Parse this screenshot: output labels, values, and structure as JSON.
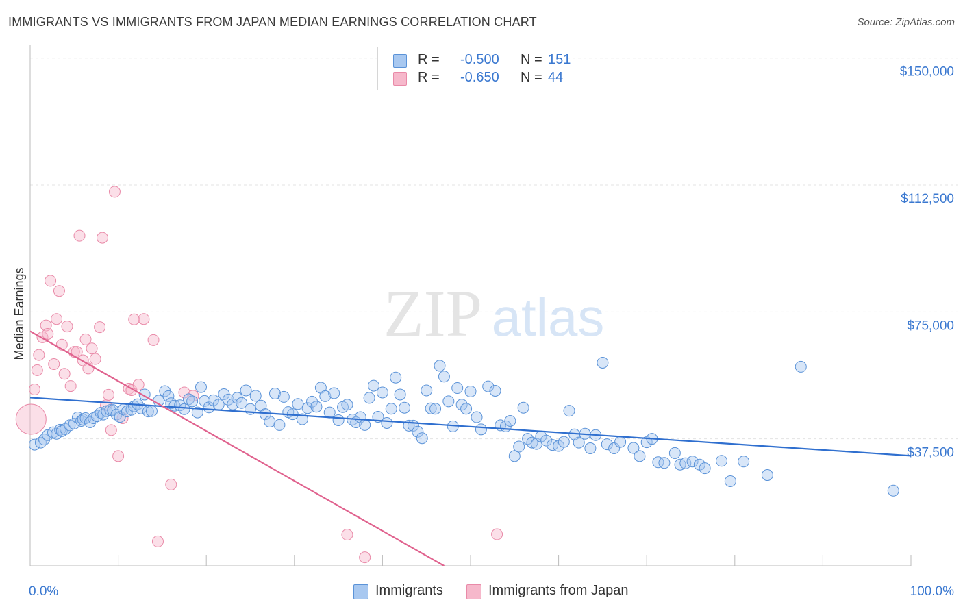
{
  "header": {
    "title": "IMMIGRANTS VS IMMIGRANTS FROM JAPAN MEDIAN EARNINGS CORRELATION CHART",
    "source": "Source: ZipAtlas.com"
  },
  "legend": {
    "rows": [
      {
        "r_label": "R =",
        "r_value": "-0.500",
        "n_label": "N =",
        "n_value": "151"
      },
      {
        "r_label": "R =",
        "r_value": "-0.650",
        "n_label": "N =",
        "n_value": "44"
      }
    ]
  },
  "bottom_legend": {
    "items": [
      {
        "label": "Immigrants"
      },
      {
        "label": "Immigrants from Japan"
      }
    ]
  },
  "watermark": {
    "zip": "ZIP",
    "atlas": "atlas"
  },
  "colors": {
    "blue_fill": "#a8c8f0",
    "blue_stroke": "#5b93d8",
    "blue_line": "#2f6fcf",
    "pink_fill": "#f6b8cb",
    "pink_stroke": "#e98aa8",
    "pink_line": "#e0628e",
    "tick_label": "#3a78d0",
    "grid": "#e3e3e3"
  },
  "chart_data": {
    "type": "scatter",
    "title": "IMMIGRANTS VS IMMIGRANTS FROM JAPAN MEDIAN EARNINGS CORRELATION CHART",
    "ylabel": "Median Earnings",
    "xlabel": "",
    "x_tick_labels": [
      "0.0%",
      "100.0%"
    ],
    "y_tick_labels": [
      "$150,000",
      "$112,500",
      "$75,000",
      "$37,500"
    ],
    "y_ticks": [
      150000,
      112500,
      75000,
      37500
    ],
    "xlim": [
      0,
      100
    ],
    "ylim": [
      0,
      155000
    ],
    "grid": true,
    "legend_position": "top-center",
    "series": [
      {
        "name": "Immigrants",
        "color": "#5b93d8",
        "trend": {
          "x": [
            0,
            100
          ],
          "y": [
            49700,
            32500
          ]
        },
        "points": [
          [
            0.5,
            35800
          ],
          [
            1.2,
            36400
          ],
          [
            1.6,
            37300
          ],
          [
            2.0,
            38600
          ],
          [
            2.6,
            39400
          ],
          [
            3.0,
            39000
          ],
          [
            3.4,
            40200
          ],
          [
            3.6,
            39800
          ],
          [
            4.0,
            40400
          ],
          [
            4.5,
            41500
          ],
          [
            5.0,
            42000
          ],
          [
            5.4,
            43800
          ],
          [
            5.8,
            42800
          ],
          [
            6.0,
            43200
          ],
          [
            6.3,
            43600
          ],
          [
            6.8,
            42400
          ],
          [
            7.2,
            43600
          ],
          [
            7.6,
            44200
          ],
          [
            8.0,
            45200
          ],
          [
            8.3,
            44700
          ],
          [
            8.7,
            45700
          ],
          [
            9.1,
            46000
          ],
          [
            9.4,
            46000
          ],
          [
            9.8,
            44700
          ],
          [
            10.2,
            44000
          ],
          [
            10.6,
            46200
          ],
          [
            11.0,
            45600
          ],
          [
            11.5,
            46100
          ],
          [
            11.8,
            47100
          ],
          [
            12.2,
            47700
          ],
          [
            12.6,
            46500
          ],
          [
            13.0,
            50600
          ],
          [
            13.4,
            45600
          ],
          [
            13.8,
            45700
          ],
          [
            14.6,
            48800
          ],
          [
            15.3,
            51600
          ],
          [
            15.7,
            50100
          ],
          [
            16.0,
            48000
          ],
          [
            16.4,
            47300
          ],
          [
            17.0,
            47400
          ],
          [
            17.5,
            46300
          ],
          [
            18.0,
            49200
          ],
          [
            18.4,
            48600
          ],
          [
            19.0,
            45300
          ],
          [
            19.4,
            52800
          ],
          [
            19.8,
            48700
          ],
          [
            20.3,
            46800
          ],
          [
            20.8,
            48900
          ],
          [
            21.4,
            47600
          ],
          [
            22.0,
            50700
          ],
          [
            22.5,
            49100
          ],
          [
            23.0,
            47700
          ],
          [
            23.5,
            49600
          ],
          [
            24.0,
            48100
          ],
          [
            24.5,
            51800
          ],
          [
            25.0,
            46300
          ],
          [
            25.6,
            50200
          ],
          [
            26.2,
            47300
          ],
          [
            26.7,
            44800
          ],
          [
            27.2,
            42600
          ],
          [
            27.8,
            50900
          ],
          [
            28.3,
            41600
          ],
          [
            28.8,
            49900
          ],
          [
            29.3,
            45400
          ],
          [
            29.8,
            44800
          ],
          [
            30.4,
            47800
          ],
          [
            30.9,
            43300
          ],
          [
            31.5,
            46600
          ],
          [
            32.0,
            48500
          ],
          [
            32.5,
            47000
          ],
          [
            33.0,
            52600
          ],
          [
            33.5,
            50100
          ],
          [
            34.0,
            45300
          ],
          [
            34.5,
            51000
          ],
          [
            35.0,
            43000
          ],
          [
            35.5,
            46900
          ],
          [
            36.0,
            47600
          ],
          [
            36.6,
            43200
          ],
          [
            37.0,
            42400
          ],
          [
            37.5,
            43900
          ],
          [
            38.0,
            41600
          ],
          [
            38.5,
            49600
          ],
          [
            39.0,
            53200
          ],
          [
            39.5,
            44000
          ],
          [
            40.0,
            51200
          ],
          [
            40.5,
            42200
          ],
          [
            41.0,
            46400
          ],
          [
            41.5,
            55600
          ],
          [
            42.0,
            50600
          ],
          [
            42.5,
            46700
          ],
          [
            43.0,
            41400
          ],
          [
            43.5,
            41400
          ],
          [
            44.0,
            39600
          ],
          [
            44.5,
            37700
          ],
          [
            45.0,
            51800
          ],
          [
            45.5,
            46500
          ],
          [
            46.0,
            46400
          ],
          [
            46.5,
            59100
          ],
          [
            47.0,
            55900
          ],
          [
            47.5,
            48600
          ],
          [
            48.0,
            41200
          ],
          [
            48.5,
            52500
          ],
          [
            49.0,
            47600
          ],
          [
            49.5,
            46400
          ],
          [
            50.0,
            51500
          ],
          [
            50.7,
            43900
          ],
          [
            51.2,
            40300
          ],
          [
            52.0,
            53000
          ],
          [
            52.8,
            51700
          ],
          [
            53.4,
            41500
          ],
          [
            54.0,
            41200
          ],
          [
            54.5,
            42800
          ],
          [
            55.0,
            32400
          ],
          [
            55.5,
            35200
          ],
          [
            56.0,
            46700
          ],
          [
            56.5,
            37500
          ],
          [
            57.0,
            36400
          ],
          [
            57.5,
            36000
          ],
          [
            58.0,
            38200
          ],
          [
            58.6,
            37000
          ],
          [
            59.3,
            35700
          ],
          [
            60.0,
            35400
          ],
          [
            60.6,
            36600
          ],
          [
            61.2,
            45800
          ],
          [
            61.8,
            38800
          ],
          [
            62.3,
            36400
          ],
          [
            63.0,
            39000
          ],
          [
            63.6,
            34700
          ],
          [
            64.2,
            38600
          ],
          [
            65.0,
            60000
          ],
          [
            65.5,
            35900
          ],
          [
            66.3,
            34700
          ],
          [
            67.0,
            36600
          ],
          [
            68.5,
            34800
          ],
          [
            69.2,
            32400
          ],
          [
            70.0,
            36500
          ],
          [
            70.6,
            37500
          ],
          [
            71.3,
            30600
          ],
          [
            72.0,
            30400
          ],
          [
            73.2,
            33300
          ],
          [
            73.8,
            29900
          ],
          [
            74.4,
            30300
          ],
          [
            75.2,
            30800
          ],
          [
            76.0,
            29900
          ],
          [
            76.6,
            28800
          ],
          [
            78.5,
            31000
          ],
          [
            79.5,
            25000
          ],
          [
            81.0,
            30800
          ],
          [
            83.7,
            26800
          ],
          [
            87.5,
            58800
          ],
          [
            98.0,
            22200
          ]
        ]
      },
      {
        "name": "Immigrants from Japan",
        "color": "#e98aa8",
        "trend": {
          "x": [
            0,
            47
          ],
          "y": [
            69300,
            0
          ]
        },
        "points": [
          [
            0.5,
            52100
          ],
          [
            0.8,
            57800
          ],
          [
            1.0,
            62300
          ],
          [
            1.4,
            67500
          ],
          [
            1.8,
            71000
          ],
          [
            2.0,
            68500
          ],
          [
            2.3,
            84200
          ],
          [
            2.7,
            59600
          ],
          [
            3.0,
            72900
          ],
          [
            3.3,
            81200
          ],
          [
            3.6,
            65300
          ],
          [
            3.9,
            56700
          ],
          [
            4.2,
            70700
          ],
          [
            4.6,
            53100
          ],
          [
            5.0,
            63200
          ],
          [
            5.3,
            63200
          ],
          [
            5.6,
            97500
          ],
          [
            6.0,
            60700
          ],
          [
            6.3,
            66900
          ],
          [
            6.6,
            58300
          ],
          [
            7.0,
            64200
          ],
          [
            7.4,
            61100
          ],
          [
            7.9,
            70500
          ],
          [
            8.2,
            96900
          ],
          [
            8.6,
            47400
          ],
          [
            8.9,
            50500
          ],
          [
            9.2,
            40100
          ],
          [
            9.6,
            110500
          ],
          [
            10.0,
            32400
          ],
          [
            10.5,
            43600
          ],
          [
            11.2,
            52300
          ],
          [
            11.5,
            51900
          ],
          [
            11.8,
            72800
          ],
          [
            12.3,
            53500
          ],
          [
            12.9,
            72900
          ],
          [
            14.0,
            66700
          ],
          [
            14.5,
            7200
          ],
          [
            16.0,
            24000
          ],
          [
            17.5,
            51200
          ],
          [
            18.5,
            50200
          ],
          [
            36.0,
            9200
          ],
          [
            38.0,
            2500
          ],
          [
            53.0,
            9300
          ],
          [
            0.1,
            43300
          ]
        ]
      }
    ]
  }
}
